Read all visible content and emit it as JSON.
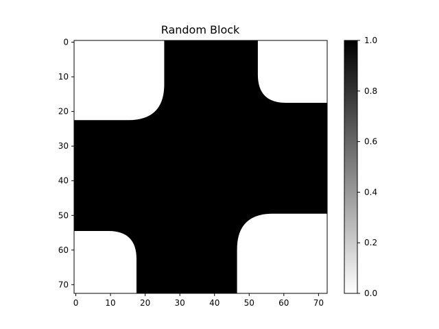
{
  "chart_data": {
    "type": "heatmap",
    "title": "Random Block",
    "xlabel": "",
    "ylabel": "",
    "grid_size": [
      73,
      73
    ],
    "x_ticks": [
      0,
      10,
      20,
      30,
      40,
      50,
      60,
      70
    ],
    "y_ticks": [
      0,
      10,
      20,
      30,
      40,
      50,
      60,
      70
    ],
    "colormap": "gray_r",
    "value_range": [
      0.0,
      1.0
    ],
    "colorbar_ticks": [
      "0.0",
      "0.2",
      "0.4",
      "0.6",
      "0.8",
      "1.0"
    ],
    "colors": {
      "low": "#ffffff",
      "high": "#000000",
      "axis": "#000000"
    },
    "white_regions": [
      {
        "name": "top-left",
        "rows": [
          0,
          22
        ],
        "cols": [
          0,
          25
        ]
      },
      {
        "name": "top-right",
        "rows": [
          0,
          17
        ],
        "cols": [
          53,
          72
        ]
      },
      {
        "name": "bottom-left",
        "rows": [
          55,
          72
        ],
        "cols": [
          0,
          17
        ]
      },
      {
        "name": "bottom-right",
        "rows": [
          50,
          72
        ],
        "cols": [
          47,
          72
        ]
      }
    ],
    "value_outside_regions": 1.0
  }
}
